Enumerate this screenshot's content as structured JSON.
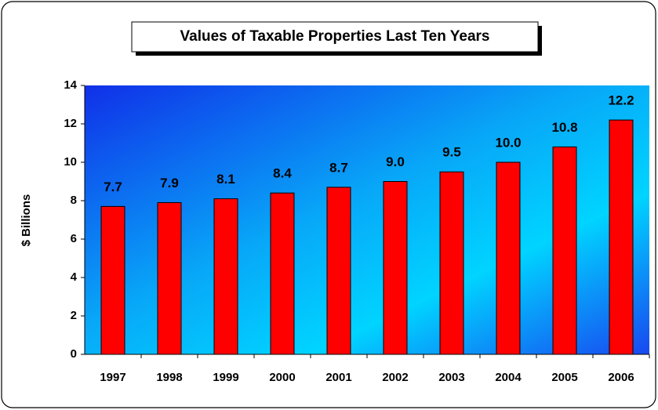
{
  "chart_data": {
    "type": "bar",
    "title": "Values of Taxable Properties Last Ten Years",
    "y_label": "$ Billions",
    "categories": [
      "1997",
      "1998",
      "1999",
      "2000",
      "2001",
      "2002",
      "2003",
      "2004",
      "2005",
      "2006"
    ],
    "values": [
      7.7,
      7.9,
      8.1,
      8.4,
      8.7,
      9.0,
      9.5,
      10.0,
      10.8,
      12.2
    ],
    "value_labels": [
      "7.7",
      "7.9",
      "8.1",
      "8.4",
      "8.7",
      "9.0",
      "9.5",
      "10.0",
      "10.8",
      "12.2"
    ],
    "color": "#ff0000",
    "ylim": [
      0,
      14
    ],
    "yticks": [
      0,
      2,
      4,
      6,
      8,
      10,
      12,
      14
    ],
    "grid": false
  }
}
